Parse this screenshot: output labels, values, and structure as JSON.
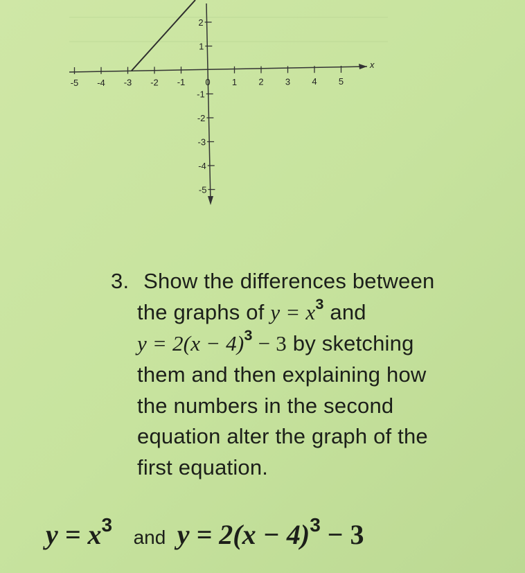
{
  "graph": {
    "x_tick_labels": [
      "-5",
      "-4",
      "-3",
      "-2",
      "-1",
      "0",
      "1",
      "2",
      "3",
      "4",
      "5"
    ],
    "y_tick_labels": [
      "2",
      "1",
      "-1",
      "-2",
      "-3",
      "-4",
      "-5"
    ],
    "x_axis_label": "x"
  },
  "problem": {
    "number": "3.",
    "line1": "Show the differences between",
    "line2_start": "the graphs of",
    "eq1": {
      "base": "y = x",
      "exp": "3"
    },
    "line2_end": "and",
    "eq2": {
      "base": "y = 2(x − 4)",
      "exp": "3",
      "rest": "− 3"
    },
    "line3_end": "by sketching",
    "lines": [
      "them and then explaining how",
      "the numbers in the second",
      "equation alter the graph of the",
      "first equation."
    ]
  },
  "answer": {
    "eq1": {
      "base": "y = x",
      "exp": "3"
    },
    "connector": "and",
    "eq2": {
      "base": "y = 2(x − 4)",
      "exp": "3",
      "rest": "− 3"
    }
  }
}
